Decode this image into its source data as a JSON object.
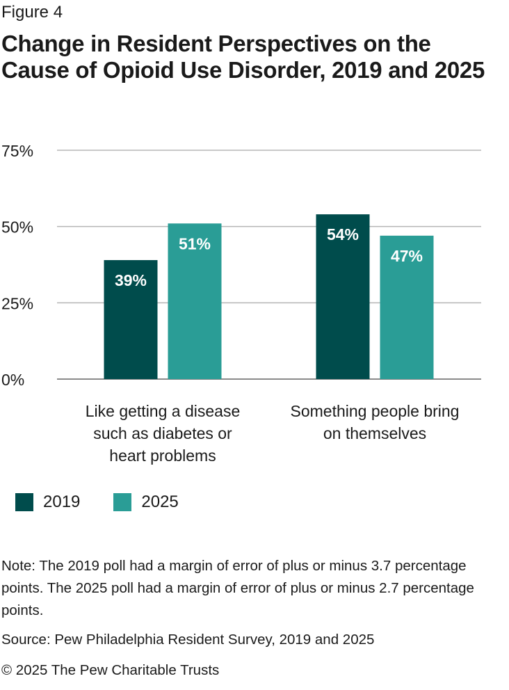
{
  "figure_label": "Figure 4",
  "title": "Change in Resident Perspectives on the Cause of Opioid Use Disorder, 2019 and 2025",
  "chart_data": {
    "type": "bar",
    "categories": [
      [
        "Like getting a disease",
        "such as diabetes or",
        "heart problems"
      ],
      [
        "Something people bring",
        "on themselves"
      ]
    ],
    "series": [
      {
        "name": "2019",
        "values": [
          39,
          54
        ],
        "labels": [
          "39%",
          "54%"
        ],
        "color": "#004C4C"
      },
      {
        "name": "2025",
        "values": [
          51,
          47
        ],
        "labels": [
          "51%",
          "47%"
        ],
        "color": "#2A9D96"
      }
    ],
    "ylim": [
      0,
      75
    ],
    "yticks": [
      0,
      25,
      50,
      75
    ],
    "ytick_labels": [
      "0%",
      "25%",
      "50%",
      "75%"
    ],
    "xlabel": "",
    "ylabel": "",
    "grid": true,
    "legend_position": "bottom-left"
  },
  "legend": [
    {
      "label": "2019",
      "color": "#004C4C"
    },
    {
      "label": "2025",
      "color": "#2A9D96"
    }
  ],
  "note": "Note: The 2019 poll had a margin of error of plus or minus 3.7 percentage points. The 2025 poll had a margin of error of plus or minus 2.7 percentage points.",
  "source": "Source: Pew Philadelphia Resident Survey, 2019 and 2025",
  "copyright": "© 2025 The Pew Charitable Trusts"
}
